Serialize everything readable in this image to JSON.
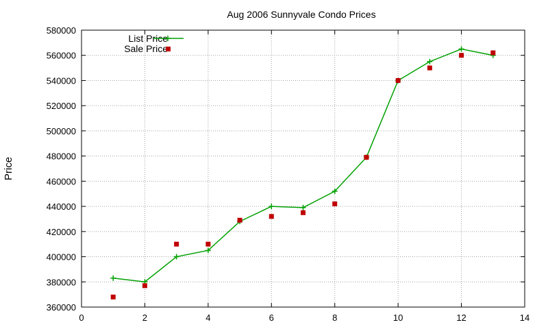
{
  "chart_data": {
    "type": "line",
    "title": "Aug 2006 Sunnyvale Condo Prices",
    "xlabel": "",
    "ylabel": "Price",
    "xlim": [
      0,
      14
    ],
    "ylim": [
      360000,
      580000
    ],
    "x_ticks": [
      "0",
      "2",
      "4",
      "6",
      "8",
      "10",
      "12",
      "14"
    ],
    "y_ticks": [
      "360000",
      "380000",
      "400000",
      "420000",
      "440000",
      "460000",
      "480000",
      "500000",
      "520000",
      "540000",
      "560000",
      "580000"
    ],
    "grid": true,
    "legend_position": "top-left",
    "series": [
      {
        "name": "List Price",
        "style": "line-with-plus-markers",
        "color": "#00a000",
        "x": [
          1,
          2,
          3,
          4,
          5,
          6,
          7,
          8,
          9,
          10,
          11,
          12,
          13
        ],
        "y": [
          383000,
          380000,
          400000,
          405000,
          428000,
          440000,
          439000,
          452000,
          479000,
          540000,
          555000,
          565000,
          560000
        ]
      },
      {
        "name": "Sale Price",
        "style": "square-markers",
        "color": "#c00000",
        "x": [
          1,
          2,
          3,
          4,
          5,
          6,
          7,
          8,
          9,
          10,
          11,
          12,
          13
        ],
        "y": [
          368000,
          377000,
          410000,
          410000,
          429000,
          432000,
          435000,
          442000,
          479000,
          540000,
          550000,
          560000,
          562000
        ]
      }
    ]
  }
}
